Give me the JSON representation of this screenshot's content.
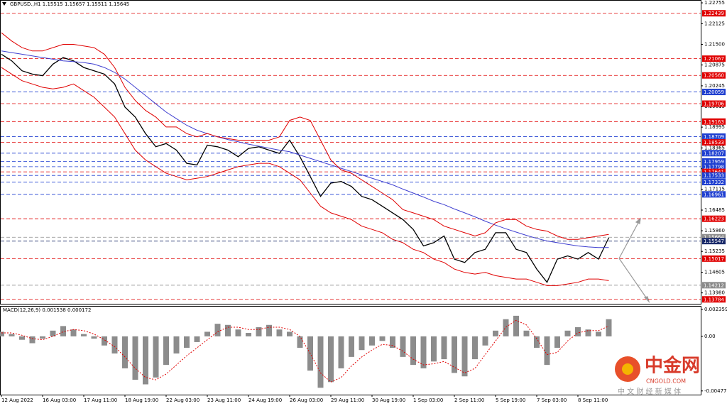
{
  "chart_data": [
    {
      "type": "line",
      "title": "GBPUSD.,H1  1.15515 1.15657 1.15511 1.15645",
      "categories": [
        "12 Aug 2022",
        null,
        null,
        null,
        "16 Aug 03:00",
        null,
        null,
        null,
        "17 Aug 11:00",
        null,
        null,
        null,
        "18 Aug 19:00",
        null,
        null,
        null,
        "22 Aug 03:00",
        null,
        null,
        null,
        "23 Aug 11:00",
        null,
        null,
        null,
        "24 Aug 19:00",
        null,
        null,
        null,
        "26 Aug 03:00",
        null,
        null,
        null,
        "29 Aug 11:00",
        null,
        null,
        null,
        "30 Aug 19:00",
        null,
        null,
        null,
        "1 Sep 03:00",
        null,
        null,
        null,
        "2 Sep 11:00",
        null,
        null,
        null,
        "5 Sep 19:00",
        null,
        null,
        null,
        "7 Sep 03:00",
        null,
        null,
        null,
        "8 Sep 11:00",
        null,
        null,
        null
      ],
      "series": [
        {
          "color": "#000000",
          "values": [
            1.212,
            1.21,
            1.207,
            1.206,
            1.2055,
            1.209,
            1.211,
            1.21,
            1.208,
            1.207,
            1.206,
            1.203,
            1.196,
            1.193,
            1.188,
            1.184,
            1.185,
            1.183,
            1.179,
            1.1785,
            1.1845,
            1.184,
            1.183,
            1.181,
            1.1835,
            1.184,
            1.183,
            1.182,
            1.186,
            1.181,
            1.175,
            1.169,
            1.173,
            1.1735,
            1.172,
            1.169,
            1.168,
            1.166,
            1.164,
            1.162,
            1.159,
            1.154,
            1.155,
            1.157,
            1.15,
            1.149,
            1.152,
            1.153,
            1.158,
            1.158,
            1.153,
            1.152,
            1.147,
            1.143,
            1.15,
            1.151,
            1.15,
            1.152,
            1.15,
            1.1565
          ]
        },
        {
          "color": "#3f3fd0",
          "values": [
            1.213,
            1.2125,
            1.212,
            1.2115,
            1.211,
            1.2105,
            1.21,
            1.2098,
            1.2095,
            1.209,
            1.208,
            1.2065,
            1.2045,
            1.202,
            1.1995,
            1.197,
            1.1945,
            1.1925,
            1.1905,
            1.189,
            1.188,
            1.187,
            1.1862,
            1.1855,
            1.1848,
            1.1842,
            1.1836,
            1.183,
            1.1825,
            1.1815,
            1.1805,
            1.1795,
            1.1785,
            1.1775,
            1.1765,
            1.1755,
            1.1745,
            1.1735,
            1.1725,
            1.1712,
            1.17,
            1.1688,
            1.1675,
            1.1665,
            1.1652,
            1.164,
            1.1628,
            1.1615,
            1.1603,
            1.1592,
            1.1582,
            1.1572,
            1.1563,
            1.1555,
            1.155,
            1.1545,
            1.154,
            1.1537,
            1.1535,
            1.1535
          ]
        },
        {
          "color": "#e00000",
          "values": [
            1.2185,
            1.216,
            1.214,
            1.213,
            1.213,
            1.214,
            1.215,
            1.215,
            1.2145,
            1.214,
            1.212,
            1.208,
            1.202,
            1.198,
            1.195,
            1.193,
            1.19,
            1.19,
            1.188,
            1.187,
            1.188,
            1.187,
            1.1865,
            1.186,
            1.186,
            1.186,
            1.186,
            1.187,
            1.192,
            1.193,
            1.192,
            1.186,
            1.18,
            1.177,
            1.176,
            1.174,
            1.172,
            1.17,
            1.168,
            1.165,
            1.164,
            1.163,
            1.162,
            1.16,
            1.159,
            1.158,
            1.157,
            1.158,
            1.161,
            1.162,
            1.162,
            1.16,
            1.159,
            1.1585,
            1.157,
            1.156,
            1.156,
            1.1565,
            1.157,
            1.1575
          ]
        },
        {
          "color": "#e00000",
          "values": [
            1.208,
            1.206,
            1.204,
            1.203,
            1.202,
            1.2015,
            1.202,
            1.203,
            1.201,
            1.199,
            1.196,
            1.193,
            1.188,
            1.183,
            1.18,
            1.178,
            1.176,
            1.175,
            1.174,
            1.1745,
            1.175,
            1.176,
            1.177,
            1.178,
            1.1785,
            1.179,
            1.179,
            1.178,
            1.176,
            1.174,
            1.17,
            1.166,
            1.164,
            1.163,
            1.162,
            1.16,
            1.159,
            1.158,
            1.156,
            1.155,
            1.153,
            1.152,
            1.15,
            1.149,
            1.147,
            1.146,
            1.1455,
            1.146,
            1.145,
            1.1445,
            1.144,
            1.144,
            1.143,
            1.142,
            1.142,
            1.1425,
            1.143,
            1.144,
            1.144,
            1.1435
          ]
        }
      ],
      "ylim": [
        1.1365,
        1.2282
      ],
      "yticks": [
        1.22755,
        1.22125,
        {
          "value": 1.215,
          "label": "1.21500"
        },
        1.20875,
        1.20245,
        1.19615,
        1.18995,
        1.18365,
        1.17735,
        1.17115,
        1.16485,
        {
          "value": 1.1586,
          "label": "1.15860"
        },
        1.15235,
        1.14605,
        {
          "value": 1.1398,
          "label": "1.13980"
        }
      ],
      "levels": [
        {
          "value": 1.22439,
          "label": "1.22439",
          "color": "#e00000"
        },
        {
          "value": 1.21067,
          "label": "1.21067",
          "color": "#e00000"
        },
        {
          "value": 1.2056,
          "label": "1.20560",
          "color": "#e00000"
        },
        {
          "value": 1.20059,
          "label": "1.20059",
          "color": "#1f3fd0"
        },
        {
          "value": 1.19706,
          "label": "1.19706",
          "color": "#e00000"
        },
        {
          "value": 1.19163,
          "label": "1.19163",
          "color": "#e00000"
        },
        {
          "value": 1.18709,
          "label": "1.18709",
          "color": "#1f3fd0"
        },
        {
          "value": 1.18533,
          "label": "1.18533",
          "color": "#e00000"
        },
        {
          "value": 1.18207,
          "label": "1.18207",
          "color": "#1f3fd0"
        },
        {
          "value": 1.17959,
          "label": "1.17959",
          "color": "#1f3fd0"
        },
        {
          "value": 1.17798,
          "label": "1.17798",
          "color": "#1f3fd0"
        },
        {
          "value": 1.17641,
          "label": "1.17641",
          "color": "#e00000"
        },
        {
          "value": 1.17533,
          "label": "1.17533",
          "color": "#1f3fd0"
        },
        {
          "value": 1.17332,
          "label": "1.17332",
          "color": "#1f3fd0"
        },
        {
          "value": 1.16961,
          "label": "1.16961",
          "color": "#1f3fd0"
        },
        {
          "value": 1.16223,
          "label": "1.16223",
          "color": "#e00000"
        },
        {
          "value": 1.15664,
          "label": "1.15664",
          "color": "#8a8a8a"
        },
        {
          "value": 1.15547,
          "label": "1.15547",
          "color": "#1a2a6a"
        },
        {
          "value": 1.15017,
          "label": "1.15017",
          "color": "#e00000"
        },
        {
          "value": 1.14212,
          "label": "1.14212",
          "color": "#8a8a8a"
        },
        {
          "value": 1.13784,
          "label": "1.13784",
          "color": "#e00000"
        }
      ]
    },
    {
      "type": "bar",
      "title": "MACD(12,26,9) 0.001538 0.000172",
      "series": [
        {
          "type": "bar",
          "color": "#8c8c8c",
          "values": [
            0.0004,
            0.0002,
            -0.0003,
            -0.0006,
            -0.0002,
            0.0005,
            0.0009,
            0.0006,
            0.0002,
            -0.0002,
            -0.0008,
            -0.0015,
            -0.0028,
            -0.0038,
            -0.0042,
            -0.0036,
            -0.0025,
            -0.0015,
            -0.001,
            -0.0005,
            0.0004,
            0.0011,
            0.001,
            0.0006,
            0.0003,
            0.0008,
            0.001,
            0.0006,
            0.0004,
            -0.001,
            -0.003,
            -0.0045,
            -0.004,
            -0.0028,
            -0.0018,
            -0.0012,
            -0.0008,
            -0.0004,
            -0.001,
            -0.0018,
            -0.0025,
            -0.0028,
            -0.0022,
            -0.002,
            -0.0032,
            -0.0035,
            -0.002,
            -0.0008,
            0.0005,
            0.0015,
            0.0018,
            0.0005,
            -0.001,
            -0.0025,
            -0.001,
            0.0005,
            0.0008,
            0.0006,
            0.0004,
            0.0015
          ]
        },
        {
          "type": "line",
          "color": "#e00000",
          "dash": true,
          "values": [
            0.0003,
            0.0003,
            0.0001,
            -0.0002,
            -0.0003,
            0.0,
            0.0004,
            0.0006,
            0.0005,
            0.0002,
            -0.0003,
            -0.0009,
            -0.0018,
            -0.0028,
            -0.0036,
            -0.0038,
            -0.0033,
            -0.0025,
            -0.0017,
            -0.001,
            -0.0003,
            0.0004,
            0.0008,
            0.0008,
            0.0006,
            0.0006,
            0.0008,
            0.0008,
            0.0006,
            0.0,
            -0.0015,
            -0.0032,
            -0.004,
            -0.0036,
            -0.0026,
            -0.0018,
            -0.0012,
            -0.0007,
            -0.0008,
            -0.0013,
            -0.002,
            -0.0025,
            -0.0024,
            -0.0022,
            -0.0027,
            -0.0032,
            -0.0028,
            -0.0016,
            -0.0004,
            0.0008,
            0.0014,
            0.001,
            -0.0002,
            -0.0016,
            -0.0014,
            -0.0004,
            0.0003,
            0.0005,
            0.0005,
            0.0009
          ]
        }
      ],
      "ylim": [
        -0.0051,
        0.0026
      ],
      "yticks": [
        0.002359,
        {
          "value": 0,
          "label": "0.00"
        },
        {
          "value": -0.004776,
          "label": "-0.004776"
        }
      ]
    }
  ],
  "watermark": {
    "brand": "中金网",
    "site": "CNGOLD.COM",
    "slogan": "中 文 财 经 新 媒 体"
  }
}
